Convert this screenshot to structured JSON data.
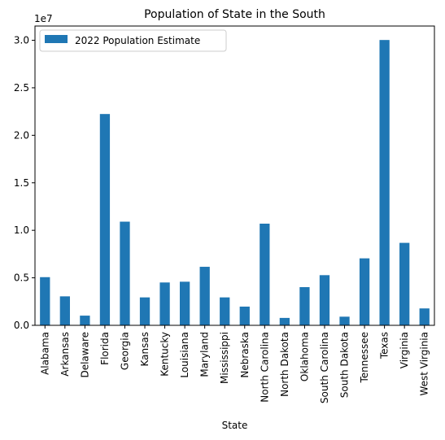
{
  "chart_data": {
    "type": "bar",
    "title": "Population of State in the South",
    "xlabel": "State",
    "ylabel": "",
    "y_offset_label": "1e7",
    "ylim": [
      0,
      31500000
    ],
    "yticks": [
      0,
      5000000,
      10000000,
      15000000,
      20000000,
      25000000,
      30000000
    ],
    "ytick_labels": [
      "0.0",
      "0.5",
      "1.0",
      "1.5",
      "2.0",
      "2.5",
      "3.0"
    ],
    "legend_position": "upper-left",
    "categories": [
      "Alabama",
      "Arkansas",
      "Delaware",
      "Florida",
      "Georgia",
      "Kansas",
      "Kentucky",
      "Louisiana",
      "Maryland",
      "Mississippi",
      "Nebraska",
      "North Carolina",
      "North Dakota",
      "Oklahoma",
      "South Carolina",
      "South Dakota",
      "Tennessee",
      "Texas",
      "Virginia",
      "West Virginia"
    ],
    "series": [
      {
        "name": "2022 Population Estimate",
        "color": "#1f77b4",
        "values": [
          5070000,
          3050000,
          1020000,
          22240000,
          10910000,
          2940000,
          4510000,
          4590000,
          6160000,
          2940000,
          1970000,
          10700000,
          780000,
          4020000,
          5280000,
          910000,
          7050000,
          30030000,
          8680000,
          1780000
        ]
      }
    ]
  }
}
